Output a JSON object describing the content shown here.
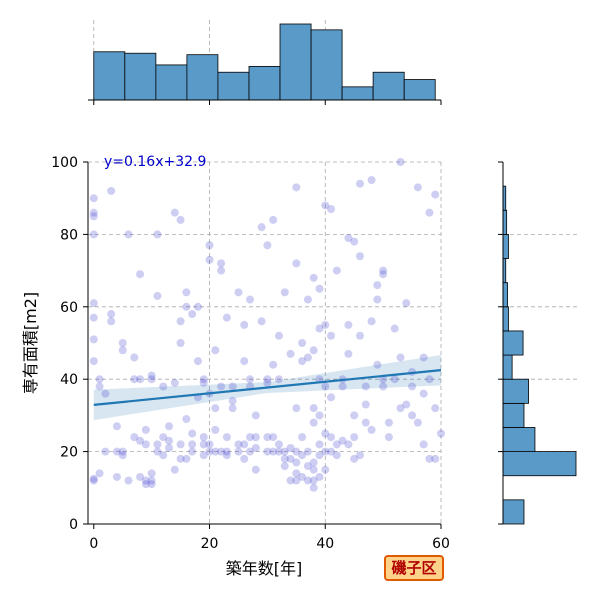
{
  "chart_data": {
    "type": "scatter",
    "xlabel": "築年数[年]",
    "ylabel": "専有面積[m2]",
    "xlim": [
      -1,
      60
    ],
    "ylim": [
      0,
      100
    ],
    "xticks": [
      0,
      20,
      40,
      60
    ],
    "yticks": [
      0,
      20,
      40,
      60,
      80,
      100
    ],
    "grid": true,
    "fit_equation": "y=0.16x+32.9",
    "fit_line": {
      "slope": 0.16,
      "intercept": 32.9
    },
    "region_label": "磯子区",
    "colors": {
      "points": "#3a3ad0",
      "fit_line": "#1f77b4",
      "hist_fill": "#5a9ac8",
      "region_border": "#e05a00",
      "region_bg": "#ffd28a",
      "region_text": "#b00000"
    },
    "x_histogram": {
      "bins": [
        0,
        5.36,
        10.73,
        16.09,
        21.45,
        26.82,
        32.18,
        37.55,
        42.91,
        48.27,
        53.64,
        59.0
      ],
      "counts": [
        33,
        32,
        24,
        31,
        19,
        23,
        52,
        48,
        9,
        19,
        14
      ]
    },
    "y_histogram": {
      "bins": [
        0,
        6.67,
        13.33,
        20,
        26.67,
        33.33,
        40,
        46.67,
        53.33,
        60,
        66.67,
        73.33,
        80,
        86.67,
        93.33,
        100
      ],
      "counts": [
        23,
        0,
        80,
        35,
        23,
        28,
        10,
        22,
        6,
        5,
        3,
        6,
        4,
        3,
        0
      ]
    },
    "points": [
      [
        0,
        12
      ],
      [
        0,
        12.5
      ],
      [
        0,
        45
      ],
      [
        0,
        51
      ],
      [
        0,
        57
      ],
      [
        0,
        61
      ],
      [
        0,
        85
      ],
      [
        0,
        86
      ],
      [
        0,
        90
      ],
      [
        0,
        80
      ],
      [
        1,
        38
      ],
      [
        1,
        40
      ],
      [
        1,
        14
      ],
      [
        2,
        20
      ],
      [
        2,
        36
      ],
      [
        3,
        58
      ],
      [
        3,
        56
      ],
      [
        4,
        27
      ],
      [
        3,
        92
      ],
      [
        4,
        13
      ],
      [
        4,
        20
      ],
      [
        5,
        20
      ],
      [
        5,
        19
      ],
      [
        5,
        48
      ],
      [
        5,
        50
      ],
      [
        6,
        80
      ],
      [
        6,
        12
      ],
      [
        7,
        46
      ],
      [
        7,
        40
      ],
      [
        7,
        24
      ],
      [
        8,
        69
      ],
      [
        8,
        40
      ],
      [
        8,
        23
      ],
      [
        8,
        13
      ],
      [
        9,
        12
      ],
      [
        9,
        11
      ],
      [
        9,
        22
      ],
      [
        9,
        26
      ],
      [
        10,
        11
      ],
      [
        10,
        12
      ],
      [
        10,
        14
      ],
      [
        10,
        40
      ],
      [
        10,
        41
      ],
      [
        11,
        63
      ],
      [
        11,
        80
      ],
      [
        11,
        20
      ],
      [
        11,
        22
      ],
      [
        12,
        24
      ],
      [
        12,
        19
      ],
      [
        12,
        38
      ],
      [
        13,
        23
      ],
      [
        13,
        21
      ],
      [
        13,
        27
      ],
      [
        14,
        15
      ],
      [
        14,
        86
      ],
      [
        14,
        39
      ],
      [
        15,
        22
      ],
      [
        15,
        18
      ],
      [
        15,
        84
      ],
      [
        15,
        56
      ],
      [
        15,
        50
      ],
      [
        16,
        60
      ],
      [
        16,
        64
      ],
      [
        16,
        18
      ],
      [
        16,
        29
      ],
      [
        17,
        58
      ],
      [
        17,
        22
      ],
      [
        17,
        20
      ],
      [
        17,
        25
      ],
      [
        18,
        60
      ],
      [
        18,
        35
      ],
      [
        18,
        45
      ],
      [
        19,
        19
      ],
      [
        19,
        22
      ],
      [
        19,
        24
      ],
      [
        19,
        40
      ],
      [
        19,
        39
      ],
      [
        20,
        20
      ],
      [
        20,
        22
      ],
      [
        20,
        36
      ],
      [
        20,
        73
      ],
      [
        20,
        77
      ],
      [
        21,
        20
      ],
      [
        21,
        26
      ],
      [
        21,
        32
      ],
      [
        21,
        48
      ],
      [
        22,
        20
      ],
      [
        22,
        70
      ],
      [
        22,
        72
      ],
      [
        22,
        38
      ],
      [
        23,
        20
      ],
      [
        23,
        19
      ],
      [
        23,
        24
      ],
      [
        23,
        57
      ],
      [
        24,
        32
      ],
      [
        24,
        34
      ],
      [
        24,
        38
      ],
      [
        25,
        20
      ],
      [
        25,
        22
      ],
      [
        25,
        64
      ],
      [
        26,
        18
      ],
      [
        26,
        22
      ],
      [
        26,
        45
      ],
      [
        26,
        55
      ],
      [
        27,
        20
      ],
      [
        27,
        24
      ],
      [
        27,
        38
      ],
      [
        27,
        40
      ],
      [
        27,
        62
      ],
      [
        28,
        21
      ],
      [
        28,
        24
      ],
      [
        28,
        15
      ],
      [
        28,
        30
      ],
      [
        29,
        56
      ],
      [
        29,
        82
      ],
      [
        30,
        24
      ],
      [
        30,
        20
      ],
      [
        30,
        39
      ],
      [
        30,
        40
      ],
      [
        30,
        77
      ],
      [
        31,
        20
      ],
      [
        31,
        24
      ],
      [
        31,
        44
      ],
      [
        31,
        84
      ],
      [
        32,
        20
      ],
      [
        32,
        22
      ],
      [
        32,
        40
      ],
      [
        32,
        52
      ],
      [
        33,
        16
      ],
      [
        33,
        18
      ],
      [
        33,
        20
      ],
      [
        33,
        64
      ],
      [
        34,
        12
      ],
      [
        34,
        18
      ],
      [
        34,
        21
      ],
      [
        34,
        47
      ],
      [
        35,
        12
      ],
      [
        35,
        14
      ],
      [
        35,
        17
      ],
      [
        35,
        20
      ],
      [
        35,
        32
      ],
      [
        35,
        93
      ],
      [
        35,
        72
      ],
      [
        36,
        13
      ],
      [
        36,
        19
      ],
      [
        36,
        24
      ],
      [
        36,
        50
      ],
      [
        36,
        45
      ],
      [
        37,
        12
      ],
      [
        37,
        16
      ],
      [
        37,
        20
      ],
      [
        37,
        46
      ],
      [
        37,
        62
      ],
      [
        38,
        10
      ],
      [
        38,
        12
      ],
      [
        38,
        15
      ],
      [
        38,
        17
      ],
      [
        38,
        28
      ],
      [
        38,
        32
      ],
      [
        38,
        48
      ],
      [
        38,
        68
      ],
      [
        39,
        13
      ],
      [
        39,
        19
      ],
      [
        39,
        22
      ],
      [
        39,
        30
      ],
      [
        39,
        40
      ],
      [
        39,
        54
      ],
      [
        39,
        65
      ],
      [
        40,
        15
      ],
      [
        40,
        20
      ],
      [
        40,
        25
      ],
      [
        40,
        38
      ],
      [
        40,
        55
      ],
      [
        40,
        88
      ],
      [
        41,
        20
      ],
      [
        41,
        24
      ],
      [
        41,
        35
      ],
      [
        41,
        52
      ],
      [
        41,
        87
      ],
      [
        42,
        19
      ],
      [
        42,
        22
      ],
      [
        42,
        70
      ],
      [
        43,
        40
      ],
      [
        43,
        23
      ],
      [
        43,
        38
      ],
      [
        44,
        79
      ],
      [
        44,
        22
      ],
      [
        44,
        47
      ],
      [
        44,
        55
      ],
      [
        45,
        78
      ],
      [
        45,
        24
      ],
      [
        45,
        30
      ],
      [
        45,
        18
      ],
      [
        46,
        74
      ],
      [
        46,
        94
      ],
      [
        46,
        19
      ],
      [
        46,
        52
      ],
      [
        47,
        38
      ],
      [
        47,
        33
      ],
      [
        47,
        28
      ],
      [
        48,
        95
      ],
      [
        48,
        26
      ],
      [
        48,
        56
      ],
      [
        49,
        44
      ],
      [
        49,
        62
      ],
      [
        49,
        66
      ],
      [
        50,
        69
      ],
      [
        50,
        70
      ],
      [
        50,
        38
      ],
      [
        50,
        40
      ],
      [
        51,
        24
      ],
      [
        51,
        28
      ],
      [
        52,
        40
      ],
      [
        52,
        54
      ],
      [
        53,
        100
      ],
      [
        53,
        32
      ],
      [
        53,
        46
      ],
      [
        54,
        61
      ],
      [
        54,
        33
      ],
      [
        55,
        38
      ],
      [
        55,
        30
      ],
      [
        55,
        42
      ],
      [
        56,
        28
      ],
      [
        56,
        93
      ],
      [
        57,
        22
      ],
      [
        57,
        36
      ],
      [
        57,
        46
      ],
      [
        58,
        18
      ],
      [
        58,
        86
      ],
      [
        58,
        40
      ],
      [
        59,
        18
      ],
      [
        59,
        91
      ],
      [
        59,
        32
      ],
      [
        60,
        25
      ]
    ]
  }
}
